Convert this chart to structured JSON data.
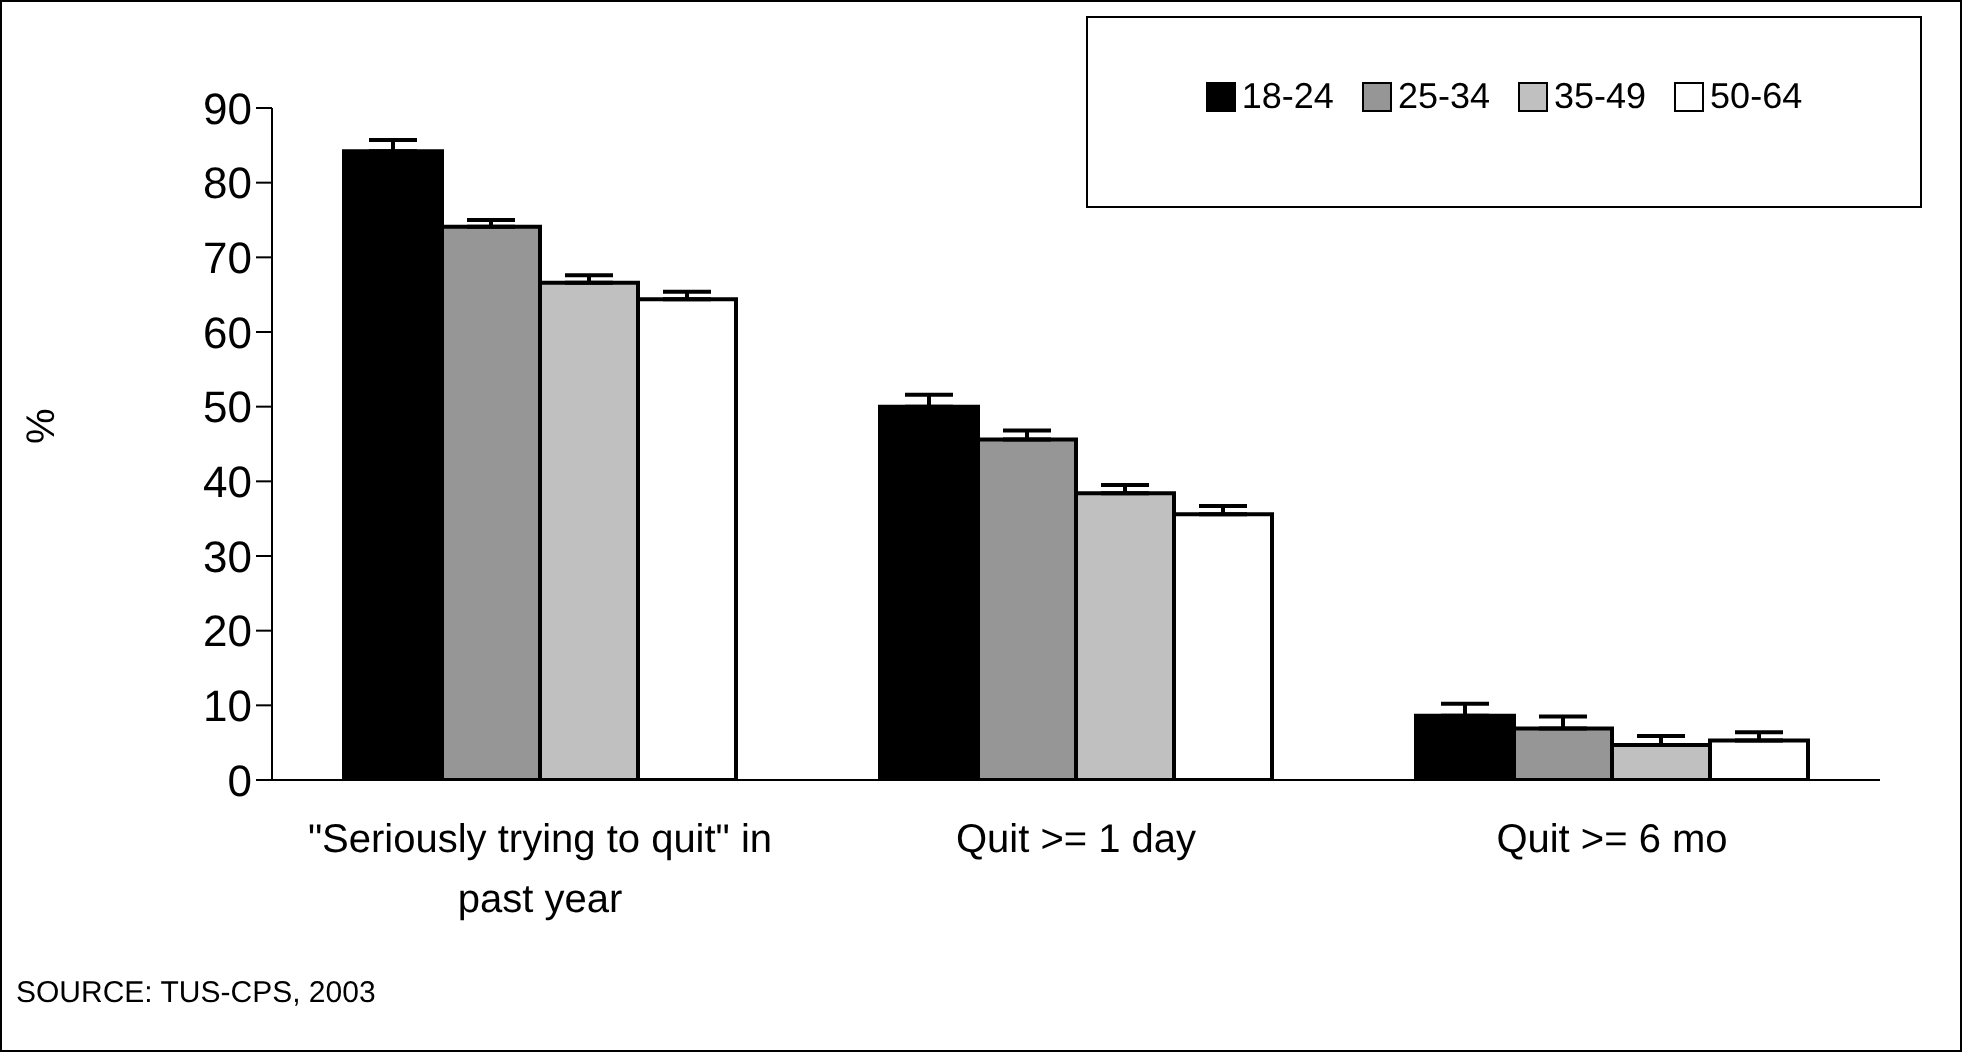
{
  "chart_data": {
    "type": "bar",
    "ylabel": "%",
    "categories": [
      "\"Seriously trying to quit\" in past year",
      "Quit >= 1 day",
      "Quit >= 6 mo"
    ],
    "series": [
      {
        "name": "18-24",
        "color": "#000000",
        "values": [
          84.2,
          50.0,
          8.6
        ],
        "errors": [
          [
            84.2,
            85.7
          ],
          [
            50.0,
            51.6
          ],
          [
            8.6,
            10.2
          ]
        ]
      },
      {
        "name": "25-34",
        "color": "#969696",
        "values": [
          74.1,
          45.6,
          6.9
        ],
        "errors": [
          [
            74.1,
            75.0
          ],
          [
            45.6,
            46.8
          ],
          [
            6.9,
            8.5
          ]
        ]
      },
      {
        "name": "35-49",
        "color": "#c0c0c0",
        "values": [
          66.6,
          38.4,
          4.7
        ],
        "errors": [
          [
            66.6,
            67.6
          ],
          [
            38.4,
            39.5
          ],
          [
            4.7,
            5.9
          ]
        ]
      },
      {
        "name": "50-64",
        "color": "#ffffff",
        "values": [
          64.4,
          35.6,
          5.3
        ],
        "errors": [
          [
            64.4,
            65.4
          ],
          [
            35.6,
            36.7
          ],
          [
            5.3,
            6.4
          ]
        ]
      }
    ],
    "ylim": [
      0,
      90
    ],
    "yticks": [
      0,
      10,
      20,
      30,
      40,
      50,
      60,
      70,
      80,
      90
    ],
    "legend": "top right",
    "annotations": [
      "SOURCE: TUS-CPS, 2003"
    ]
  }
}
